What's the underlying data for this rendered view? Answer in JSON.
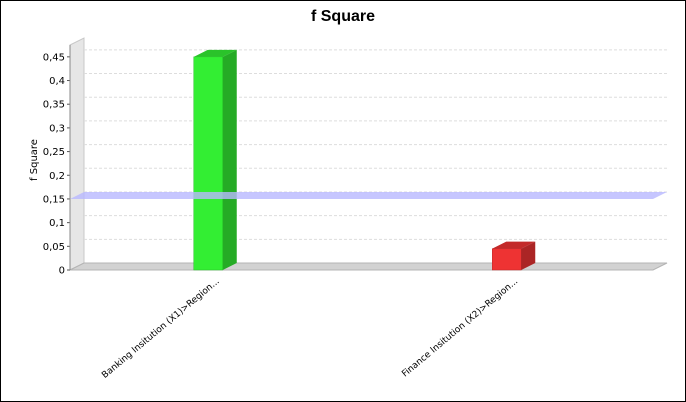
{
  "chart_data": {
    "type": "bar",
    "title": "f Square",
    "xlabel": "",
    "ylabel": "f Square",
    "ylim": [
      0,
      0.475
    ],
    "yticks": [
      0,
      0.05,
      0.1,
      0.15,
      0.2,
      0.25,
      0.3,
      0.35,
      0.4,
      0.45
    ],
    "ytick_labels": [
      "0",
      "0,05",
      "0,1",
      "0,15",
      "0,2",
      "0,25",
      "0,3",
      "0,35",
      "0,4",
      "0,45"
    ],
    "categories": [
      "Banking Insitution (X1)>Region...",
      "Finance Insitution (X2)>Region..."
    ],
    "values": [
      0.45,
      0.045
    ],
    "bar_colors": [
      "#33ee33",
      "#ee3333"
    ],
    "threshold": 0.15,
    "threshold_color": "#b8b8ff",
    "grid": true,
    "style": "3d"
  }
}
